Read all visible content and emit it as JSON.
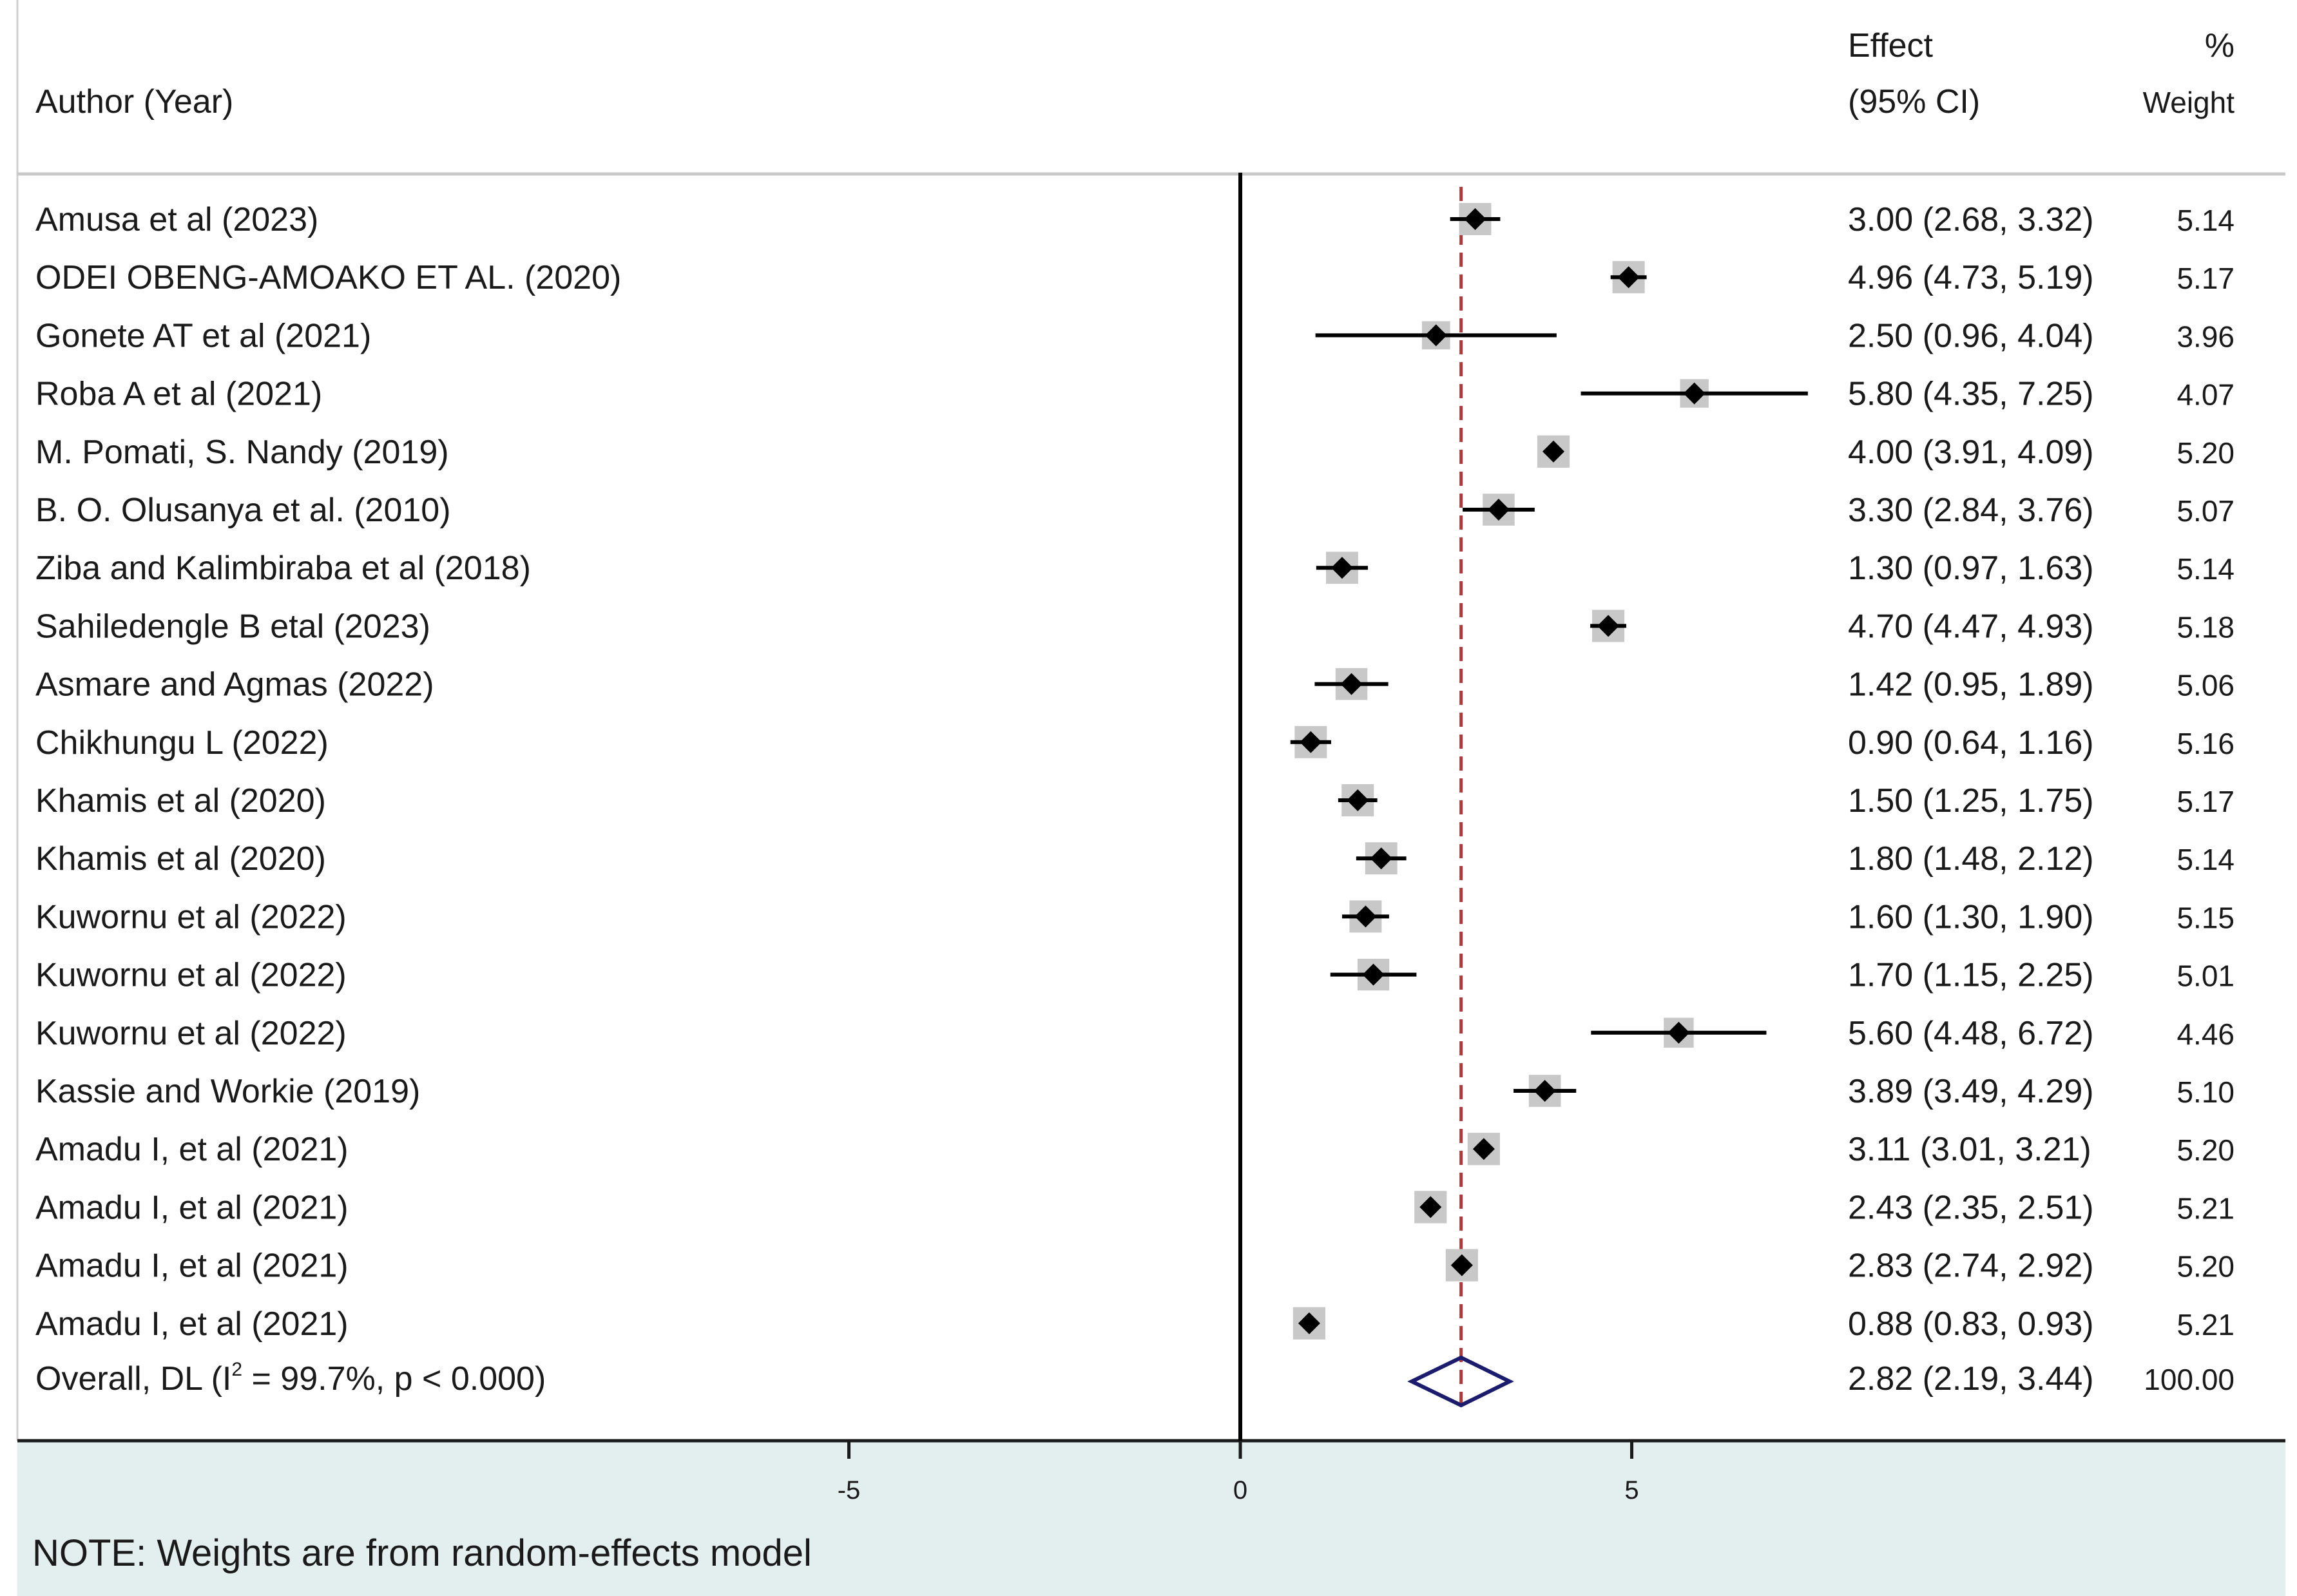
{
  "header": {
    "author_label": "Author (Year)",
    "effect_label": "Effect",
    "ci_label": "(95% CI)",
    "pct_label": "%",
    "weight_label": "Weight"
  },
  "footer": {
    "note": "NOTE: Weights are from random-effects model"
  },
  "colors": {
    "reference_line": "#b03a3a",
    "summary_diamond": "#1c1c6e",
    "weight_box": "#c8c8c8",
    "marker": "#000000",
    "footer_band": "#e3eeee"
  },
  "chart_data": {
    "type": "forest",
    "title": "",
    "xlabel": "",
    "x_ticks": [
      -5,
      0,
      5
    ],
    "xlim": [
      -15.5,
      13.2
    ],
    "null_line": 0,
    "reference_line": 2.82,
    "studies": [
      {
        "label": "Amusa et al (2023)",
        "effect": 3.0,
        "lower": 2.68,
        "upper": 3.32,
        "ci_text": "3.00 (2.68, 3.32)",
        "weight": 5.14,
        "weight_text": "5.14"
      },
      {
        "label": "ODEI OBENG-AMOAKO ET AL. (2020)",
        "effect": 4.96,
        "lower": 4.73,
        "upper": 5.19,
        "ci_text": "4.96 (4.73, 5.19)",
        "weight": 5.17,
        "weight_text": "5.17"
      },
      {
        "label": "Gonete AT et al (2021)",
        "effect": 2.5,
        "lower": 0.96,
        "upper": 4.04,
        "ci_text": "2.50 (0.96, 4.04)",
        "weight": 3.96,
        "weight_text": "3.96"
      },
      {
        "label": "Roba A et al (2021)",
        "effect": 5.8,
        "lower": 4.35,
        "upper": 7.25,
        "ci_text": "5.80 (4.35, 7.25)",
        "weight": 4.07,
        "weight_text": "4.07"
      },
      {
        "label": "M. Pomati, S. Nandy (2019)",
        "effect": 4.0,
        "lower": 3.91,
        "upper": 4.09,
        "ci_text": "4.00 (3.91, 4.09)",
        "weight": 5.2,
        "weight_text": "5.20"
      },
      {
        "label": "B. O. Olusanya et al. (2010)",
        "effect": 3.3,
        "lower": 2.84,
        "upper": 3.76,
        "ci_text": "3.30 (2.84, 3.76)",
        "weight": 5.07,
        "weight_text": "5.07"
      },
      {
        "label": "Ziba and Kalimbiraba et al (2018)",
        "effect": 1.3,
        "lower": 0.97,
        "upper": 1.63,
        "ci_text": "1.30 (0.97, 1.63)",
        "weight": 5.14,
        "weight_text": "5.14"
      },
      {
        "label": "Sahiledengle B etal (2023)",
        "effect": 4.7,
        "lower": 4.47,
        "upper": 4.93,
        "ci_text": "4.70 (4.47, 4.93)",
        "weight": 5.18,
        "weight_text": "5.18"
      },
      {
        "label": "Asmare and Agmas (2022)",
        "effect": 1.42,
        "lower": 0.95,
        "upper": 1.89,
        "ci_text": "1.42 (0.95, 1.89)",
        "weight": 5.06,
        "weight_text": "5.06"
      },
      {
        "label": "Chikhungu L (2022)",
        "effect": 0.9,
        "lower": 0.64,
        "upper": 1.16,
        "ci_text": "0.90 (0.64, 1.16)",
        "weight": 5.16,
        "weight_text": "5.16"
      },
      {
        "label": "Khamis et al (2020)",
        "effect": 1.5,
        "lower": 1.25,
        "upper": 1.75,
        "ci_text": "1.50 (1.25, 1.75)",
        "weight": 5.17,
        "weight_text": "5.17"
      },
      {
        "label": "Khamis et al (2020)",
        "effect": 1.8,
        "lower": 1.48,
        "upper": 2.12,
        "ci_text": "1.80 (1.48, 2.12)",
        "weight": 5.14,
        "weight_text": "5.14"
      },
      {
        "label": "Kuwornu et al (2022)",
        "effect": 1.6,
        "lower": 1.3,
        "upper": 1.9,
        "ci_text": "1.60 (1.30, 1.90)",
        "weight": 5.15,
        "weight_text": "5.15"
      },
      {
        "label": "Kuwornu et al (2022)",
        "effect": 1.7,
        "lower": 1.15,
        "upper": 2.25,
        "ci_text": "1.70 (1.15, 2.25)",
        "weight": 5.01,
        "weight_text": "5.01"
      },
      {
        "label": "Kuwornu et al (2022)",
        "effect": 5.6,
        "lower": 4.48,
        "upper": 6.72,
        "ci_text": "5.60 (4.48, 6.72)",
        "weight": 4.46,
        "weight_text": "4.46"
      },
      {
        "label": "Kassie and Workie (2019)",
        "effect": 3.89,
        "lower": 3.49,
        "upper": 4.29,
        "ci_text": "3.89 (3.49, 4.29)",
        "weight": 5.1,
        "weight_text": "5.10"
      },
      {
        "label": "Amadu I, et al (2021)",
        "effect": 3.11,
        "lower": 3.01,
        "upper": 3.21,
        "ci_text": "3.11 (3.01, 3.21)",
        "weight": 5.2,
        "weight_text": "5.20"
      },
      {
        "label": "Amadu I, et al (2021)",
        "effect": 2.43,
        "lower": 2.35,
        "upper": 2.51,
        "ci_text": "2.43 (2.35, 2.51)",
        "weight": 5.21,
        "weight_text": "5.21"
      },
      {
        "label": "Amadu I, et al (2021)",
        "effect": 2.83,
        "lower": 2.74,
        "upper": 2.92,
        "ci_text": "2.83 (2.74, 2.92)",
        "weight": 5.2,
        "weight_text": "5.20"
      },
      {
        "label": "Amadu I, et al (2021)",
        "effect": 0.88,
        "lower": 0.83,
        "upper": 0.93,
        "ci_text": "0.88 (0.83, 0.93)",
        "weight": 5.21,
        "weight_text": "5.21"
      }
    ],
    "overall": {
      "label_prefix": "Overall, DL (I",
      "label_superscript": "2",
      "label_suffix": " = 99.7%, p < 0.000)",
      "effect": 2.82,
      "lower": 2.19,
      "upper": 3.44,
      "ci_text": "2.82 (2.19, 3.44)",
      "weight": 100.0,
      "weight_text": "100.00"
    }
  }
}
